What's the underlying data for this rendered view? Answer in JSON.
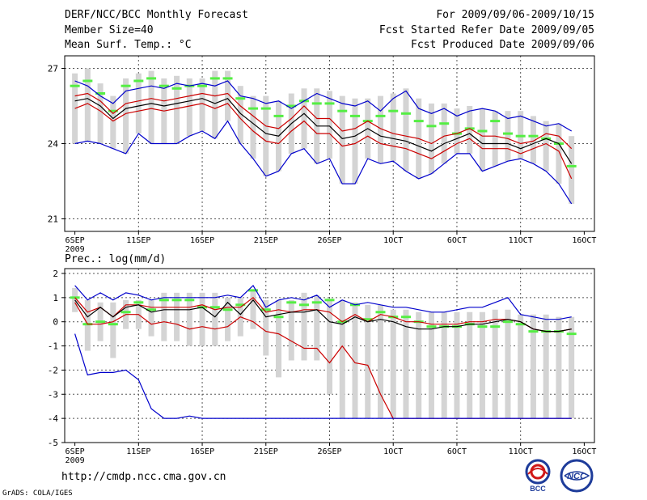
{
  "header": {
    "title": "DERF/NCC/BCC Monthly Forecast",
    "member_size": "Member Size=40",
    "variable": "Mean Surf. Temp.: °C",
    "period": "For 2009/09/06-2009/10/15",
    "started": "Fcst Started Refer Date 2009/09/05",
    "produced": "Fcst Produced Date 2009/09/06"
  },
  "footer": {
    "url": "http://cmdp.ncc.cma.gov.cn",
    "grads": "GrADS: COLA/IGES",
    "logo_left_text": "BCC",
    "logo_right_text": "NCC"
  },
  "colors": {
    "max_min": "#0000cc",
    "quantile": "#cc0000",
    "mean": "#000000",
    "box": "#d4d4d4",
    "marker": "#55ee44"
  },
  "chart_data": [
    {
      "type": "line",
      "title": "Mean Surf. Temp.: °C",
      "panel": "temperature",
      "x_tick_labels": [
        "6SEP",
        "11SEP",
        "16SEP",
        "21SEP",
        "26SEP",
        "1OCT",
        "6OCT",
        "11OCT",
        "16OCT"
      ],
      "x_tick_days": [
        1,
        6,
        11,
        16,
        21,
        26,
        31,
        36,
        41
      ],
      "x_year_label": "2009",
      "ylim": [
        20.5,
        27.5
      ],
      "y_ticks": [
        21,
        24,
        27
      ],
      "days": [
        1,
        2,
        3,
        4,
        5,
        6,
        7,
        8,
        9,
        10,
        11,
        12,
        13,
        14,
        15,
        16,
        17,
        18,
        19,
        20,
        21,
        22,
        23,
        24,
        25,
        26,
        27,
        28,
        29,
        30,
        31,
        32,
        33,
        34,
        35,
        36,
        37,
        38,
        39,
        40
      ],
      "series": [
        {
          "name": "Maximum",
          "color": "#0000cc",
          "values": [
            26.5,
            26.3,
            25.9,
            25.6,
            26.1,
            26.2,
            26.3,
            26.2,
            26.4,
            26.3,
            26.4,
            26.3,
            26.5,
            25.9,
            25.8,
            25.6,
            25.7,
            25.4,
            25.7,
            26.0,
            25.8,
            25.6,
            25.5,
            25.7,
            25.3,
            25.8,
            26.1,
            25.4,
            25.2,
            25.4,
            25.1,
            25.3,
            25.4,
            25.3,
            25.0,
            25.1,
            24.9,
            24.7,
            24.8,
            24.5
          ]
        },
        {
          "name": "Upper quantile",
          "color": "#cc0000",
          "values": [
            25.9,
            26.0,
            25.7,
            25.2,
            25.6,
            25.7,
            25.8,
            25.7,
            25.8,
            25.9,
            26.0,
            25.9,
            26.0,
            25.5,
            25.1,
            24.7,
            24.6,
            25.0,
            25.5,
            25.0,
            25.0,
            24.5,
            24.6,
            24.9,
            24.6,
            24.4,
            24.3,
            24.2,
            24.0,
            24.3,
            24.4,
            24.6,
            24.3,
            24.3,
            24.2,
            24.0,
            24.1,
            24.4,
            24.3,
            23.8
          ]
        },
        {
          "name": "Ensemble mean",
          "color": "#000000",
          "values": [
            25.7,
            25.8,
            25.5,
            25.0,
            25.4,
            25.5,
            25.6,
            25.5,
            25.6,
            25.7,
            25.8,
            25.6,
            25.8,
            25.2,
            24.8,
            24.4,
            24.3,
            24.8,
            25.2,
            24.7,
            24.7,
            24.2,
            24.3,
            24.6,
            24.3,
            24.2,
            24.1,
            23.9,
            23.7,
            24.0,
            24.2,
            24.4,
            24.0,
            24.0,
            24.0,
            23.8,
            24.0,
            24.2,
            24.0,
            23.2
          ]
        },
        {
          "name": "Lower quantile",
          "color": "#cc0000",
          "values": [
            25.4,
            25.6,
            25.3,
            24.9,
            25.2,
            25.3,
            25.4,
            25.3,
            25.4,
            25.5,
            25.6,
            25.4,
            25.6,
            25.0,
            24.5,
            24.1,
            24.0,
            24.5,
            24.9,
            24.4,
            24.4,
            23.9,
            24.0,
            24.3,
            24.0,
            23.9,
            23.8,
            23.6,
            23.4,
            23.7,
            24.0,
            24.2,
            23.8,
            23.8,
            23.8,
            23.6,
            23.8,
            24.0,
            23.7,
            22.6
          ]
        },
        {
          "name": "Minimum",
          "color": "#0000cc",
          "values": [
            24.0,
            24.1,
            24.0,
            23.8,
            23.6,
            24.4,
            24.0,
            24.0,
            24.0,
            24.3,
            24.5,
            24.2,
            24.9,
            24.0,
            23.4,
            22.7,
            22.9,
            23.6,
            23.8,
            23.2,
            23.4,
            22.4,
            22.4,
            23.4,
            23.2,
            23.3,
            22.9,
            22.6,
            22.8,
            23.2,
            23.6,
            23.6,
            22.9,
            23.1,
            23.3,
            23.4,
            23.2,
            22.9,
            22.4,
            21.6
          ]
        }
      ],
      "markers": [
        26.3,
        26.5,
        26.0,
        25.3,
        26.3,
        26.5,
        26.6,
        26.3,
        26.2,
        26.3,
        26.3,
        26.6,
        26.6,
        25.8,
        25.4,
        25.4,
        25.1,
        25.5,
        25.7,
        25.6,
        25.6,
        25.3,
        25.1,
        24.9,
        25.1,
        25.3,
        25.2,
        24.9,
        24.7,
        24.8,
        24.4,
        24.6,
        24.5,
        24.9,
        24.4,
        24.3,
        24.3,
        24.2,
        24.0,
        23.1
      ],
      "boxes_high": [
        26.8,
        27.0,
        26.4,
        25.9,
        26.6,
        26.8,
        26.9,
        26.6,
        26.7,
        26.6,
        26.6,
        26.9,
        26.9,
        26.3,
        25.9,
        25.9,
        25.7,
        26.0,
        26.2,
        26.2,
        26.1,
        25.9,
        25.8,
        25.8,
        25.9,
        26.0,
        26.2,
        25.8,
        25.6,
        25.6,
        25.4,
        25.5,
        25.4,
        25.3,
        25.3,
        25.3,
        25.1,
        24.9,
        24.8,
        24.3
      ]
    },
    {
      "type": "line",
      "title": "Prec.: log(mm/d)",
      "panel": "precipitation",
      "x_tick_labels": [
        "6SEP",
        "11SEP",
        "16SEP",
        "21SEP",
        "26SEP",
        "1OCT",
        "6OCT",
        "11OCT",
        "16OCT"
      ],
      "x_tick_days": [
        1,
        6,
        11,
        16,
        21,
        26,
        31,
        36,
        41
      ],
      "x_year_label": "2009",
      "ylim": [
        -5,
        2.2
      ],
      "y_ticks": [
        -5,
        -4,
        -3,
        -2,
        -1,
        0,
        1,
        2
      ],
      "days": [
        1,
        2,
        3,
        4,
        5,
        6,
        7,
        8,
        9,
        10,
        11,
        12,
        13,
        14,
        15,
        16,
        17,
        18,
        19,
        20,
        21,
        22,
        23,
        24,
        25,
        26,
        27,
        28,
        29,
        30,
        31,
        32,
        33,
        34,
        35,
        36,
        37,
        38,
        39,
        40
      ],
      "series": [
        {
          "name": "Maximum",
          "color": "#0000cc",
          "values": [
            1.5,
            0.9,
            1.2,
            0.9,
            1.2,
            1.1,
            0.9,
            1.0,
            1.0,
            1.0,
            1.0,
            1.0,
            1.1,
            1.0,
            1.5,
            0.6,
            0.9,
            1.0,
            0.9,
            1.1,
            0.6,
            0.9,
            0.7,
            0.8,
            0.7,
            0.6,
            0.6,
            0.5,
            0.4,
            0.4,
            0.5,
            0.6,
            0.6,
            0.8,
            1.0,
            0.3,
            0.2,
            0.1,
            0.1,
            0.2
          ]
        },
        {
          "name": "Upper quantile",
          "color": "#cc0000",
          "values": [
            1.0,
            0.4,
            0.6,
            0.2,
            0.7,
            0.7,
            0.6,
            0.6,
            0.6,
            0.6,
            0.7,
            0.5,
            0.6,
            0.6,
            1.0,
            0.4,
            0.5,
            0.4,
            0.5,
            0.5,
            0.4,
            0.0,
            0.3,
            0.0,
            0.3,
            0.2,
            0.0,
            0.0,
            -0.1,
            -0.1,
            -0.1,
            0.0,
            0.0,
            0.1,
            0.1,
            0.0,
            -0.3,
            -0.4,
            -0.4,
            -0.3
          ]
        },
        {
          "name": "Ensemble mean",
          "color": "#000000",
          "values": [
            0.9,
            0.2,
            0.6,
            0.2,
            0.6,
            0.7,
            0.4,
            0.5,
            0.5,
            0.5,
            0.6,
            0.2,
            0.8,
            0.3,
            0.9,
            0.2,
            0.3,
            0.4,
            0.4,
            0.5,
            0.0,
            -0.1,
            0.2,
            0.0,
            0.1,
            0.0,
            -0.2,
            -0.3,
            -0.3,
            -0.2,
            -0.2,
            -0.1,
            -0.1,
            0.0,
            0.1,
            0.0,
            -0.3,
            -0.4,
            -0.4,
            -0.3
          ]
        },
        {
          "name": "Lower quantile",
          "color": "#cc0000",
          "values": [
            0.8,
            -0.1,
            -0.1,
            0.0,
            0.3,
            0.3,
            -0.1,
            0.0,
            -0.1,
            -0.3,
            -0.2,
            -0.3,
            -0.2,
            0.2,
            0.0,
            -0.4,
            -0.5,
            -0.8,
            -1.1,
            -1.1,
            -1.7,
            -1.0,
            -1.7,
            -1.8,
            -3.0,
            -4.0,
            -4.0,
            -4.0,
            -4.0,
            -4.0,
            -4.0,
            -4.0,
            -4.0,
            -4.0,
            -4.0,
            -4.0,
            -4.0,
            -4.0,
            -4.0,
            -4.0
          ]
        },
        {
          "name": "Minimum",
          "color": "#0000cc",
          "values": [
            -0.5,
            -2.2,
            -2.1,
            -2.1,
            -2.0,
            -2.4,
            -3.6,
            -4.0,
            -4.0,
            -3.9,
            -4.0,
            -4.0,
            -4.0,
            -4.0,
            -4.0,
            -4.0,
            -4.0,
            -4.0,
            -4.0,
            -4.0,
            -4.0,
            -4.0,
            -4.0,
            -4.0,
            -4.0,
            -4.0,
            -4.0,
            -4.0,
            -4.0,
            -4.0,
            -4.0,
            -4.0,
            -4.0,
            -4.0,
            -4.0,
            -4.0,
            -4.0,
            -4.0,
            -4.0,
            -4.0
          ]
        }
      ],
      "markers": [
        1.0,
        -0.1,
        0.0,
        -0.1,
        0.4,
        0.8,
        0.5,
        0.9,
        0.9,
        0.9,
        0.6,
        0.6,
        0.5,
        0.7,
        1.3,
        0.5,
        0.2,
        0.8,
        0.7,
        0.8,
        0.9,
        0.0,
        0.7,
        0.1,
        0.4,
        0.2,
        0.2,
        0.0,
        -0.2,
        -0.2,
        -0.2,
        -0.1,
        -0.2,
        -0.2,
        0.0,
        -0.1,
        -0.4,
        -0.4,
        -0.4,
        -0.5
      ],
      "boxes_high": [
        1.4,
        0.9,
        0.8,
        0.8,
        0.9,
        0.9,
        0.9,
        1.2,
        1.2,
        1.2,
        1.2,
        1.2,
        1.0,
        1.0,
        1.3,
        0.9,
        0.9,
        0.9,
        1.2,
        1.1,
        0.9,
        0.9,
        0.8,
        0.7,
        0.7,
        0.5,
        0.5,
        0.4,
        0.4,
        0.4,
        0.4,
        0.4,
        0.4,
        0.5,
        0.5,
        0.3,
        0.3,
        0.3,
        0.2,
        0.2
      ],
      "boxes_low": [
        0.4,
        -1.2,
        -0.8,
        -1.5,
        -0.3,
        -0.3,
        -0.6,
        -0.8,
        -0.8,
        -1.0,
        -1.0,
        -1.0,
        -0.8,
        -0.6,
        -0.3,
        -1.4,
        -2.3,
        -1.6,
        -1.6,
        -1.6,
        -3.0,
        -4.0,
        -4.0,
        -4.0,
        -4.0,
        -4.0,
        -4.0,
        -4.0,
        -4.0,
        -4.0,
        -4.0,
        -4.0,
        -4.0,
        -4.0,
        -4.0,
        -4.0,
        -4.0,
        -4.0,
        -4.0,
        -4.0
      ]
    }
  ]
}
